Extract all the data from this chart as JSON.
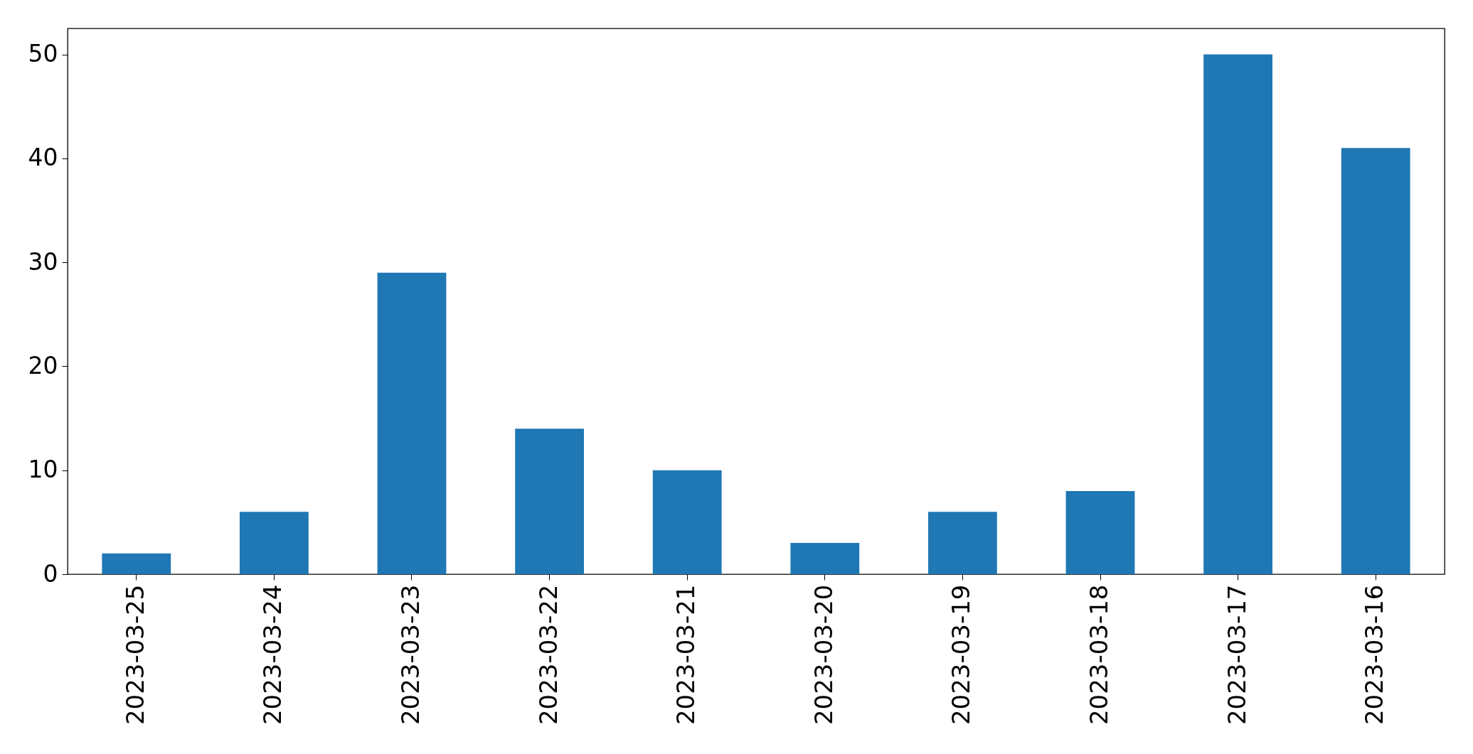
{
  "chart_data": {
    "type": "bar",
    "categories": [
      "2023-03-25",
      "2023-03-24",
      "2023-03-23",
      "2023-03-22",
      "2023-03-21",
      "2023-03-20",
      "2023-03-19",
      "2023-03-18",
      "2023-03-17",
      "2023-03-16"
    ],
    "values": [
      2,
      6,
      29,
      14,
      10,
      3,
      6,
      8,
      50,
      41
    ],
    "color": "#1f77b4",
    "ylim": [
      0,
      52.5
    ],
    "yticks": [
      0,
      10,
      20,
      30,
      40,
      50
    ],
    "grid": false
  }
}
